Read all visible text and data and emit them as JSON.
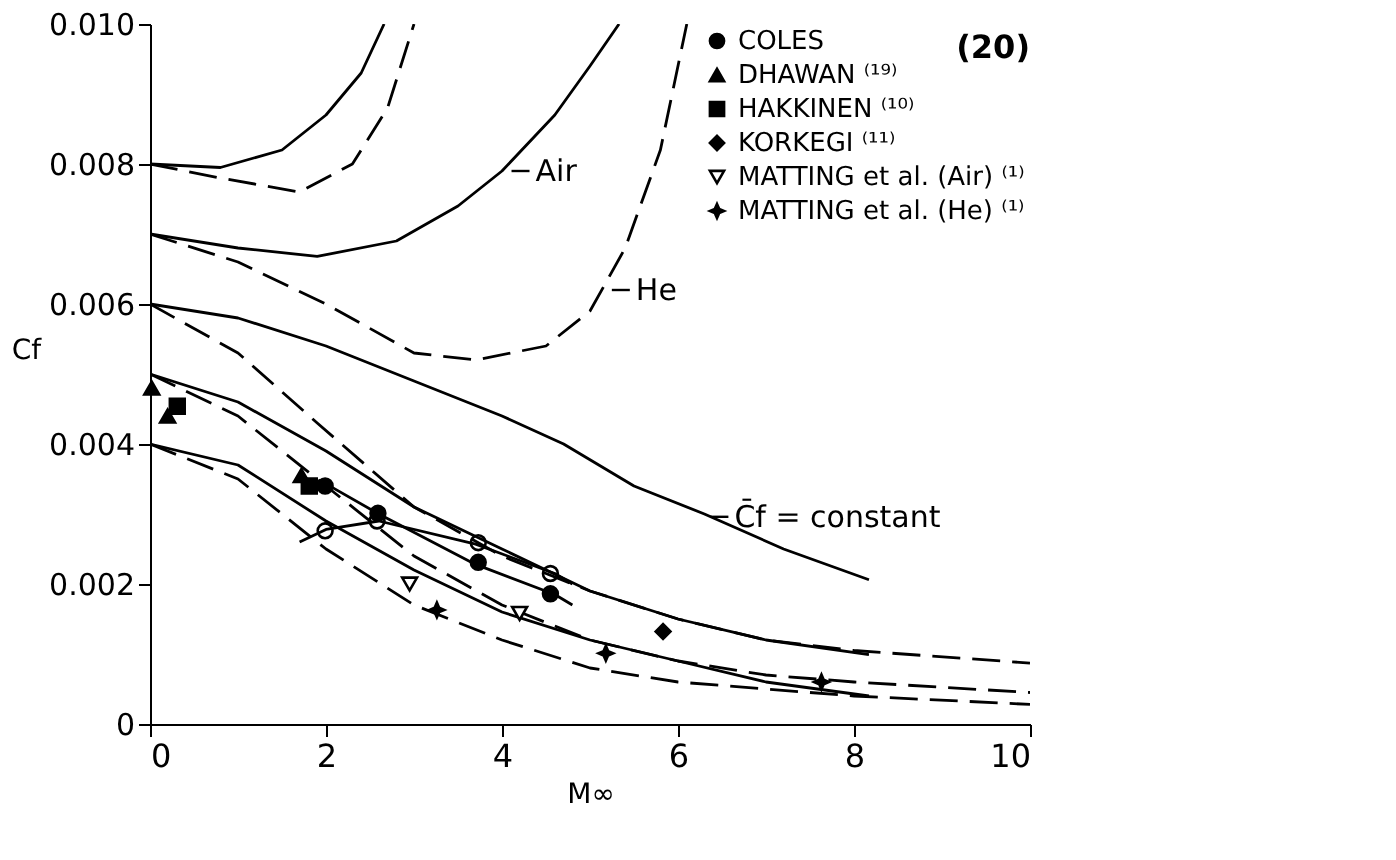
{
  "chart_data": {
    "type": "line",
    "xlabel": "M∞",
    "ylabel": "Cf",
    "xlim": [
      0,
      10
    ],
    "ylim": [
      0,
      0.01
    ],
    "xticks": [
      0,
      2,
      4,
      6,
      8,
      10
    ],
    "yticks": [
      0,
      0.002,
      0.004,
      0.006,
      0.008,
      {
        "value": 0.01,
        "label": "0.010"
      }
    ],
    "grid": false,
    "legend": "top right",
    "series": [
      {
        "line_style": "solid",
        "color": "#000000",
        "x": [
          0,
          0.8,
          1.5,
          2.0,
          2.4,
          2.66
        ],
        "values": [
          0.008,
          0.00795,
          0.0082,
          0.0087,
          0.0093,
          0.01
        ]
      },
      {
        "line_style": "dashed",
        "color": "#000000",
        "x": [
          0,
          0.8,
          1.7,
          2.3,
          2.7,
          3.0
        ],
        "values": [
          0.008,
          0.0078,
          0.0076,
          0.008,
          0.0088,
          0.01
        ]
      },
      {
        "line_style": "solid",
        "color": "#000000",
        "x": [
          0,
          1,
          1.9,
          2.8,
          3.5,
          4.0,
          4.6,
          5.0,
          5.33
        ],
        "values": [
          0.007,
          0.0068,
          0.00668,
          0.0069,
          0.0074,
          0.0079,
          0.0087,
          0.0094,
          0.01
        ]
      },
      {
        "line_style": "dashed",
        "color": "#000000",
        "x": [
          0,
          1,
          2,
          3,
          3.7,
          4.5,
          5.0,
          5.4,
          5.8,
          6.1
        ],
        "values": [
          0.007,
          0.0066,
          0.006,
          0.0053,
          0.0052,
          0.0054,
          0.0059,
          0.0068,
          0.0082,
          0.01
        ]
      },
      {
        "line_style": "solid",
        "color": "#000000",
        "x": [
          0,
          1,
          2,
          3,
          4,
          4.7,
          5.5,
          6.3,
          7.2,
          8.17
        ],
        "values": [
          0.006,
          0.0058,
          0.0054,
          0.0049,
          0.0044,
          0.004,
          0.0034,
          0.003,
          0.0025,
          0.00206
        ]
      },
      {
        "line_style": "dashed",
        "color": "#000000",
        "x": [
          0,
          1,
          1.9,
          3,
          4,
          5,
          6,
          7,
          8,
          10
        ],
        "values": [
          0.006,
          0.0053,
          0.0043,
          0.0031,
          0.0024,
          0.0019,
          0.0015,
          0.0012,
          0.00105,
          0.00087
        ]
      },
      {
        "line_style": "solid",
        "color": "#000000",
        "x": [
          0,
          1,
          2,
          3,
          4,
          5,
          6,
          7,
          8.17
        ],
        "values": [
          0.005,
          0.0046,
          0.0039,
          0.0031,
          0.0025,
          0.0019,
          0.0015,
          0.0012,
          0.00099
        ]
      },
      {
        "line_style": "dashed",
        "color": "#000000",
        "x": [
          0,
          1,
          2,
          3,
          4,
          5,
          6,
          7,
          8,
          10
        ],
        "values": [
          0.005,
          0.0044,
          0.0034,
          0.0024,
          0.0017,
          0.0012,
          0.0009,
          0.0007,
          0.0006,
          0.00045
        ]
      },
      {
        "line_style": "solid",
        "color": "#000000",
        "x": [
          0,
          1,
          2,
          3,
          4,
          5,
          6,
          7,
          8.17
        ],
        "values": [
          0.004,
          0.0037,
          0.0029,
          0.0022,
          0.0016,
          0.0012,
          0.0009,
          0.0006,
          0.0004
        ]
      },
      {
        "line_style": "dashed",
        "color": "#000000",
        "x": [
          0,
          1,
          2,
          3,
          4,
          5,
          6,
          8,
          10
        ],
        "values": [
          0.004,
          0.0035,
          0.0025,
          0.0017,
          0.0012,
          0.0008,
          0.0006,
          0.0004,
          0.00028
        ]
      },
      {
        "line_style": "solid",
        "color": "#000000",
        "x": [
          1.7,
          2.0,
          2.6,
          3.7,
          4.6,
          4.8
        ],
        "values": [
          0.0026,
          0.00278,
          0.0029,
          0.00257,
          0.00215,
          0.002
        ]
      },
      {
        "line_style": "solid",
        "color": "#000000",
        "x": [
          2.0,
          2.6,
          3.7,
          4.6,
          4.8
        ],
        "values": [
          0.00343,
          0.003,
          0.00228,
          0.00185,
          0.0017
        ]
      },
      {
        "type": "scatter",
        "marker": "circle-open",
        "color": "#000000",
        "x": [
          1.99,
          2.58,
          3.73,
          4.55
        ],
        "values": [
          0.00276,
          0.0029,
          0.00259,
          0.00215
        ]
      },
      {
        "type": "scatter",
        "name": "COLES",
        "marker": "circle",
        "color": "#000000",
        "x": [
          1.99,
          2.59,
          3.73,
          4.55
        ],
        "values": [
          0.0034,
          0.00301,
          0.00231,
          0.00186
        ]
      },
      {
        "type": "scatter",
        "name": "DHAWAN ⁽¹⁹⁾",
        "marker": "triangle",
        "color": "#000000",
        "x": [
          0.02,
          0.2,
          1.72
        ],
        "values": [
          0.0048,
          0.0044,
          0.00355
        ]
      },
      {
        "type": "scatter",
        "name": "HAKKINEN ⁽¹⁰⁾",
        "marker": "square",
        "color": "#000000",
        "x": [
          0.31,
          1.81
        ],
        "values": [
          0.00454,
          0.0034
        ]
      },
      {
        "type": "scatter",
        "name": "KORKEGI ⁽¹¹⁾",
        "marker": "diamond",
        "color": "#000000",
        "x": [
          5.83
        ],
        "values": [
          0.00132
        ]
      },
      {
        "type": "scatter",
        "name": "MATTING et al. (Air) ⁽¹⁾",
        "marker": "triangle-down-open",
        "color": "#000000",
        "x": [
          2.95,
          4.2
        ],
        "values": [
          0.002,
          0.00158
        ]
      },
      {
        "type": "scatter",
        "name": "MATTING et al. (He) ⁽¹⁾",
        "marker": "star",
        "color": "#000000",
        "x": [
          3.26,
          5.18,
          7.63
        ],
        "values": [
          0.00163,
          0.00101,
          0.0006
        ]
      }
    ],
    "annotations": [
      {
        "text": "Air",
        "x": 4.04,
        "y": 0.0079
      },
      {
        "text": "He",
        "x": 5.18,
        "y": 0.0062
      },
      {
        "text": "C̄f = constant",
        "x": 6.3,
        "y": 0.00296
      },
      "(20)"
    ]
  }
}
